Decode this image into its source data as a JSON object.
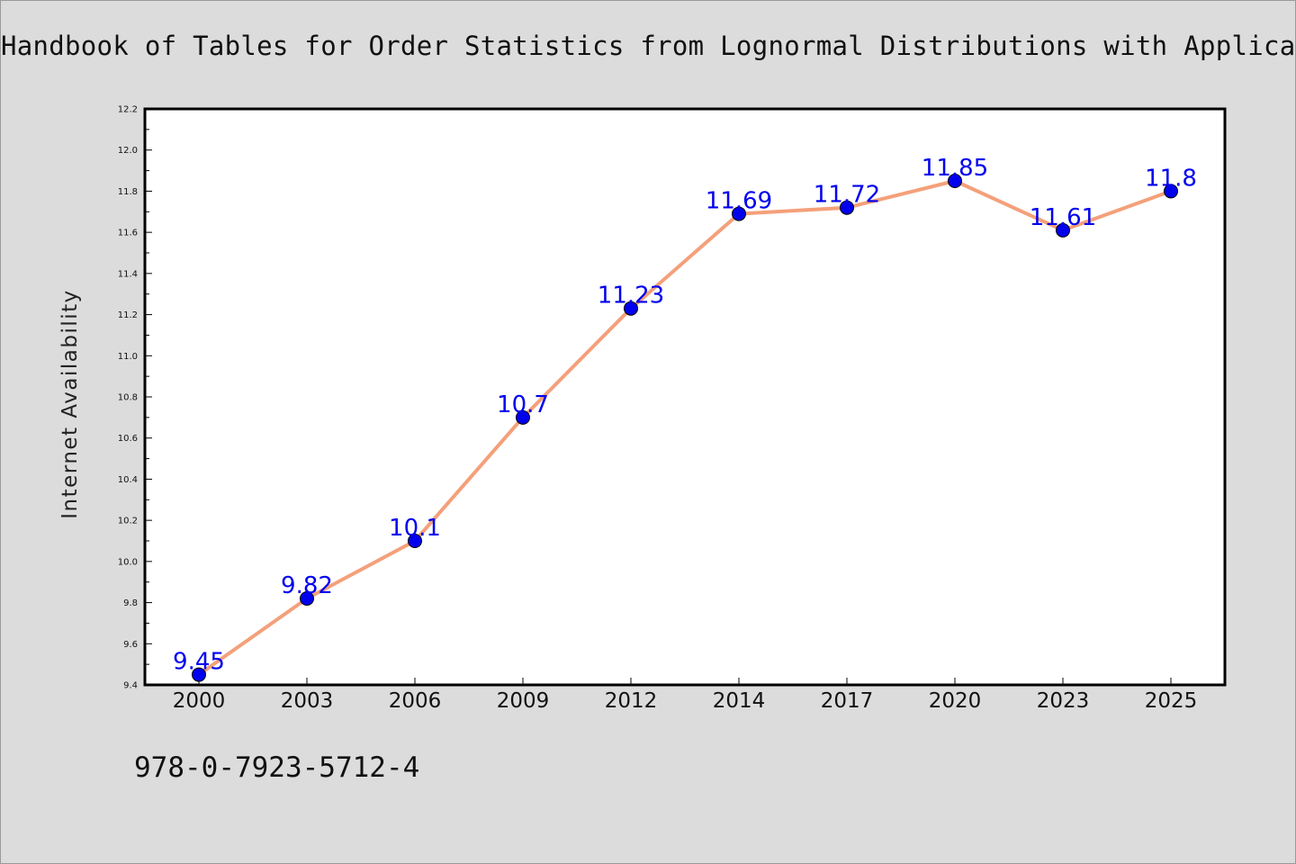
{
  "chart_data": {
    "type": "line",
    "title": "Handbook of Tables for Order Statistics from Lognormal Distributions with Applications",
    "xlabel": "",
    "ylabel": "Internet Availability",
    "categories": [
      "2000",
      "2003",
      "2006",
      "2009",
      "2012",
      "2014",
      "2017",
      "2020",
      "2023",
      "2025"
    ],
    "series": [
      {
        "values": [
          9.45,
          9.82,
          10.1,
          10.7,
          11.23,
          11.69,
          11.72,
          11.85,
          11.61,
          11.8
        ],
        "labels": [
          "9.45",
          "9.82",
          "10.1",
          "10.7",
          "11.23",
          "11.69",
          "11.72",
          "11.85",
          "11.61",
          "11.8"
        ],
        "line_color": "#f4a07a",
        "marker_color": "#0000ee"
      }
    ],
    "ylim": [
      9.4,
      12.2
    ],
    "yticks": [
      "9.4",
      "9.6",
      "9.8",
      "10.0",
      "10.2",
      "10.4",
      "10.6",
      "10.8",
      "11.0",
      "11.2",
      "11.4",
      "11.6",
      "11.8",
      "12.0",
      "12.2"
    ],
    "grid": false,
    "legend": "none",
    "annotation": "978-0-7923-5712-4"
  },
  "colors": {
    "background": "#dcdcdc",
    "plot_background": "#ffffff",
    "axis": "#000000",
    "label_color": "#0000ee"
  }
}
